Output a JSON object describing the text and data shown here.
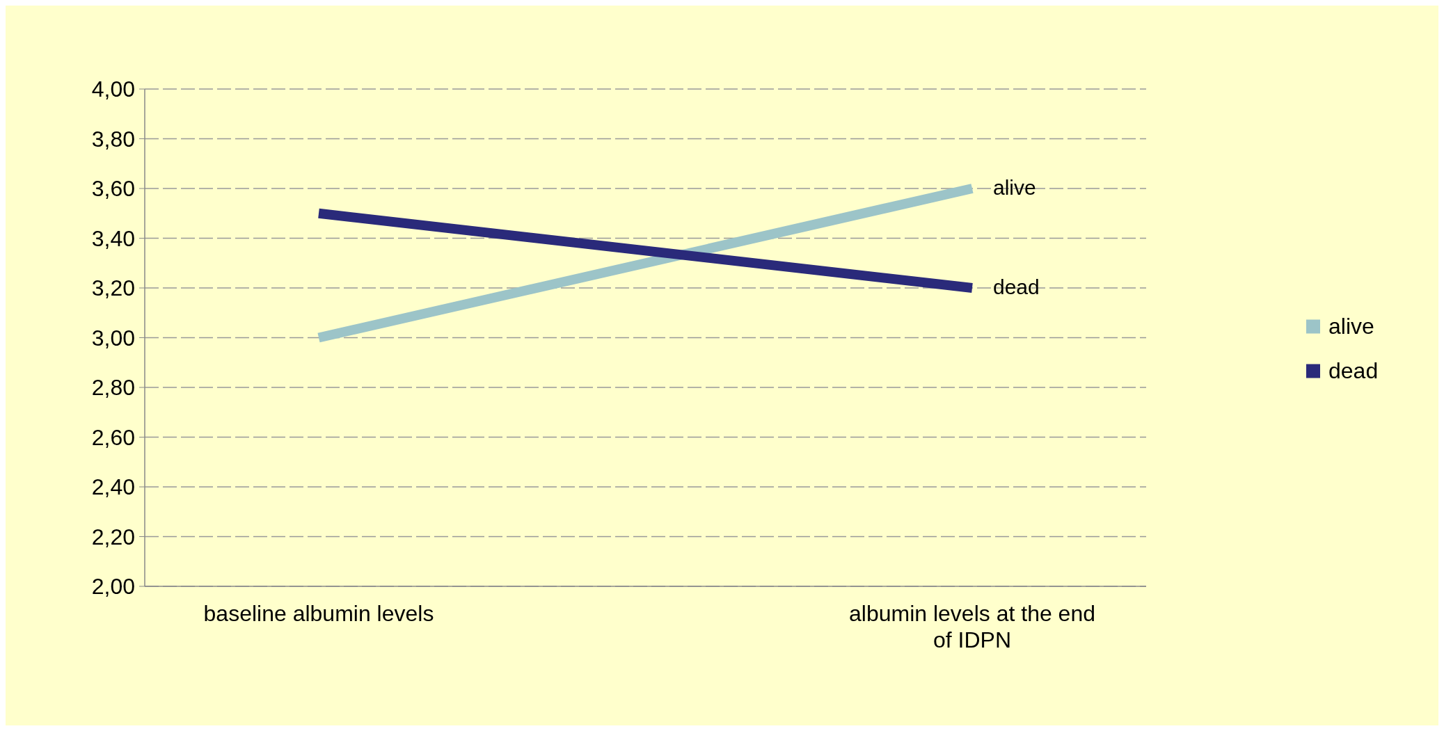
{
  "chart_data": {
    "type": "line",
    "categories": [
      "baseline albumin levels",
      "albumin levels at the end of IDPN"
    ],
    "series": [
      {
        "name": "alive",
        "color": "#9cc4c8",
        "values": [
          3.0,
          3.6
        ]
      },
      {
        "name": "dead",
        "color": "#2a2a7a",
        "values": [
          3.5,
          3.2
        ]
      }
    ],
    "ylim": [
      2,
      4
    ],
    "yticks": [
      {
        "value": 2,
        "label": "2,00"
      },
      {
        "value": 2.2,
        "label": "2,20"
      },
      {
        "value": 2.4,
        "label": "2,40"
      },
      {
        "value": 2.6,
        "label": "2,60"
      },
      {
        "value": 2.8,
        "label": "2,80"
      },
      {
        "value": 3,
        "label": "3,00"
      },
      {
        "value": 3.2,
        "label": "3,20"
      },
      {
        "value": 3.4,
        "label": "3,40"
      },
      {
        "value": 3.6,
        "label": "3,60"
      },
      {
        "value": 3.8,
        "label": "3,80"
      },
      {
        "value": 4,
        "label": "4,00"
      }
    ],
    "grid": "y",
    "legend": "right",
    "marker": "none",
    "line_style": "solid"
  }
}
